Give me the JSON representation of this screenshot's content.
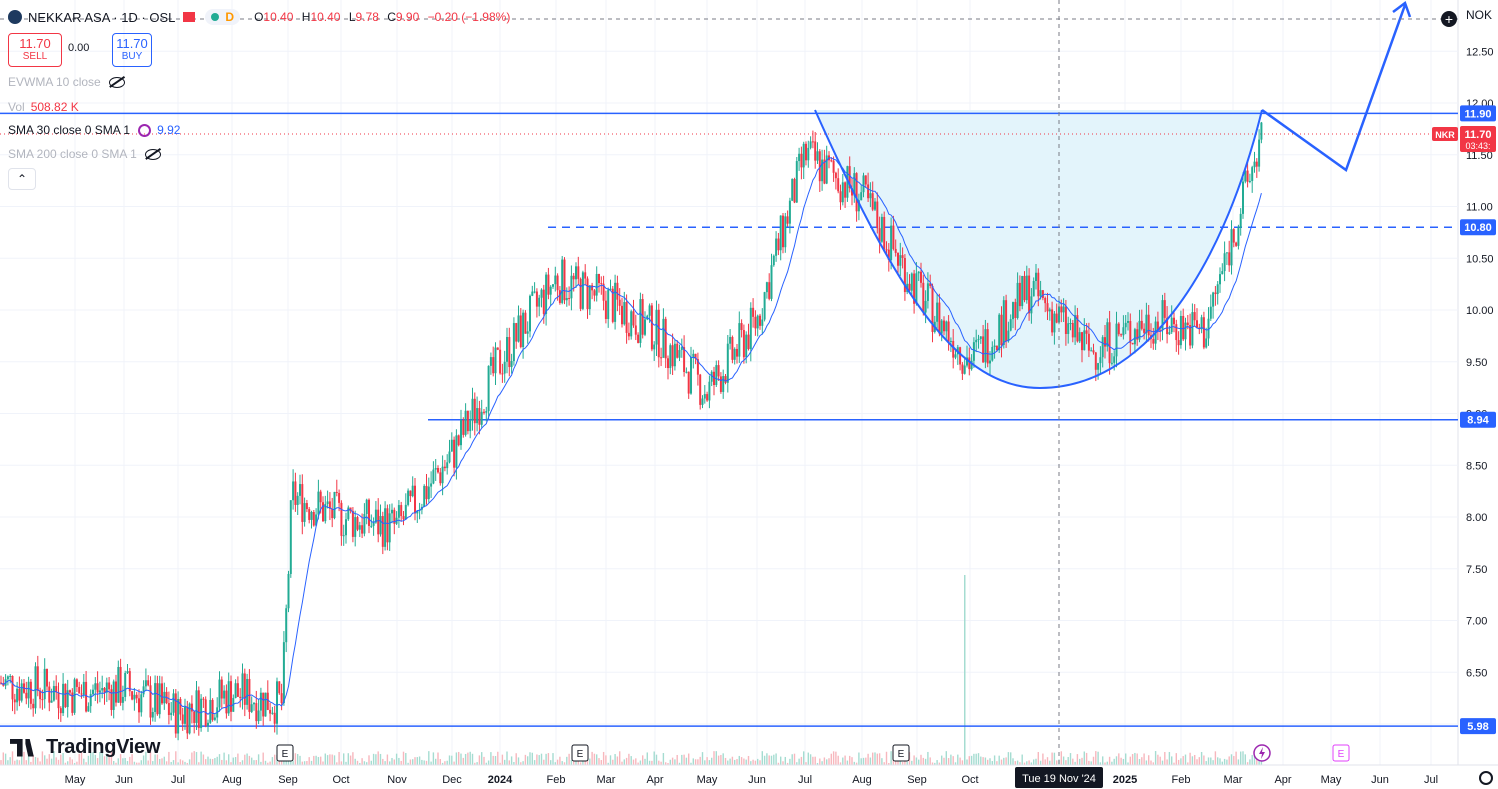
{
  "header": {
    "symbol": "NEKKAR ASA · 1D · OSL",
    "session_letter": "D",
    "open_label": "O",
    "open": "10.40",
    "high_label": "H",
    "high": "10.40",
    "low_label": "L",
    "low": "9.78",
    "close_label": "C",
    "close": "9.90",
    "change": "−0.20 (−1.98%)"
  },
  "trade": {
    "sell_price": "11.70",
    "sell_label": "SELL",
    "spread": "0.00",
    "buy_price": "11.70",
    "buy_label": "BUY"
  },
  "indicators": {
    "evwma": "EVWMA 10 close",
    "vol_label": "Vol",
    "vol_value": "508.82 K",
    "sma30": "SMA 30 close 0 SMA 1",
    "sma30_value": "9.92",
    "sma200": "SMA 200 close 0 SMA 1"
  },
  "currency": "NOK",
  "brand": "TradingView",
  "colors": {
    "up": "#22ab94",
    "down": "#f23645",
    "accent": "#2962ff",
    "cup_fill": "#e3f4fb"
  },
  "chart_data": {
    "type": "candlestick",
    "title": "NEKKAR ASA · 1D · OSL",
    "ylim": [
      5.75,
      12.8
    ],
    "y_ticks": [
      "12.50",
      "12.00",
      "11.50",
      "11.00",
      "10.50",
      "10.00",
      "9.50",
      "9.00",
      "8.50",
      "8.00",
      "7.50",
      "7.00",
      "6.50",
      "6.00"
    ],
    "x_ticks": [
      "May",
      "Jun",
      "Jul",
      "Aug",
      "Sep",
      "Oct",
      "Nov",
      "Dec",
      "2024",
      "Feb",
      "Mar",
      "Apr",
      "May",
      "Jun",
      "Jul",
      "Aug",
      "Sep",
      "Oct",
      "Nov",
      "2025",
      "Feb",
      "Mar",
      "Apr",
      "May",
      "Jun",
      "Jul"
    ],
    "x_ticks_bold": [
      "2024",
      "2025"
    ],
    "crosshair_date": "Tue 19 Nov '24",
    "price_levels": [
      {
        "label": "11.90",
        "value": 11.9,
        "style": "solid"
      },
      {
        "label": "10.80",
        "value": 10.8,
        "style": "dashed"
      },
      {
        "label": "8.94",
        "value": 8.94,
        "style": "solid"
      },
      {
        "label": "5.98",
        "value": 5.98,
        "style": "solid"
      }
    ],
    "last_price": {
      "symbol": "NKR",
      "value": "11.70",
      "countdown": "03:43:"
    },
    "earnings_markers": [
      "E",
      "E",
      "E",
      "E"
    ],
    "price_anchors": [
      {
        "x": "2023-04",
        "y": 6.4
      },
      {
        "x": "2023-05",
        "y": 6.3
      },
      {
        "x": "2023-06",
        "y": 6.35
      },
      {
        "x": "2023-07",
        "y": 6.1
      },
      {
        "x": "2023-08",
        "y": 6.3
      },
      {
        "x": "2023-08-end",
        "y": 6.2
      },
      {
        "x": "2023-09-early",
        "y": 8.2
      },
      {
        "x": "2023-10",
        "y": 8.0
      },
      {
        "x": "2023-11",
        "y": 7.9
      },
      {
        "x": "2023-12",
        "y": 8.6
      },
      {
        "x": "2024-01",
        "y": 9.5
      },
      {
        "x": "2024-02",
        "y": 10.3
      },
      {
        "x": "2024-03",
        "y": 10.1
      },
      {
        "x": "2024-04",
        "y": 9.8
      },
      {
        "x": "2024-05",
        "y": 9.2
      },
      {
        "x": "2024-06",
        "y": 9.9
      },
      {
        "x": "2024-07",
        "y": 11.5
      },
      {
        "x": "2024-08",
        "y": 11.1
      },
      {
        "x": "2024-09",
        "y": 10.2
      },
      {
        "x": "2024-10",
        "y": 9.5
      },
      {
        "x": "2024-11",
        "y": 10.2
      },
      {
        "x": "2024-12",
        "y": 9.6
      },
      {
        "x": "2025-01",
        "y": 9.9
      },
      {
        "x": "2025-02",
        "y": 9.8
      },
      {
        "x": "2025-03",
        "y": 11.7
      }
    ]
  }
}
